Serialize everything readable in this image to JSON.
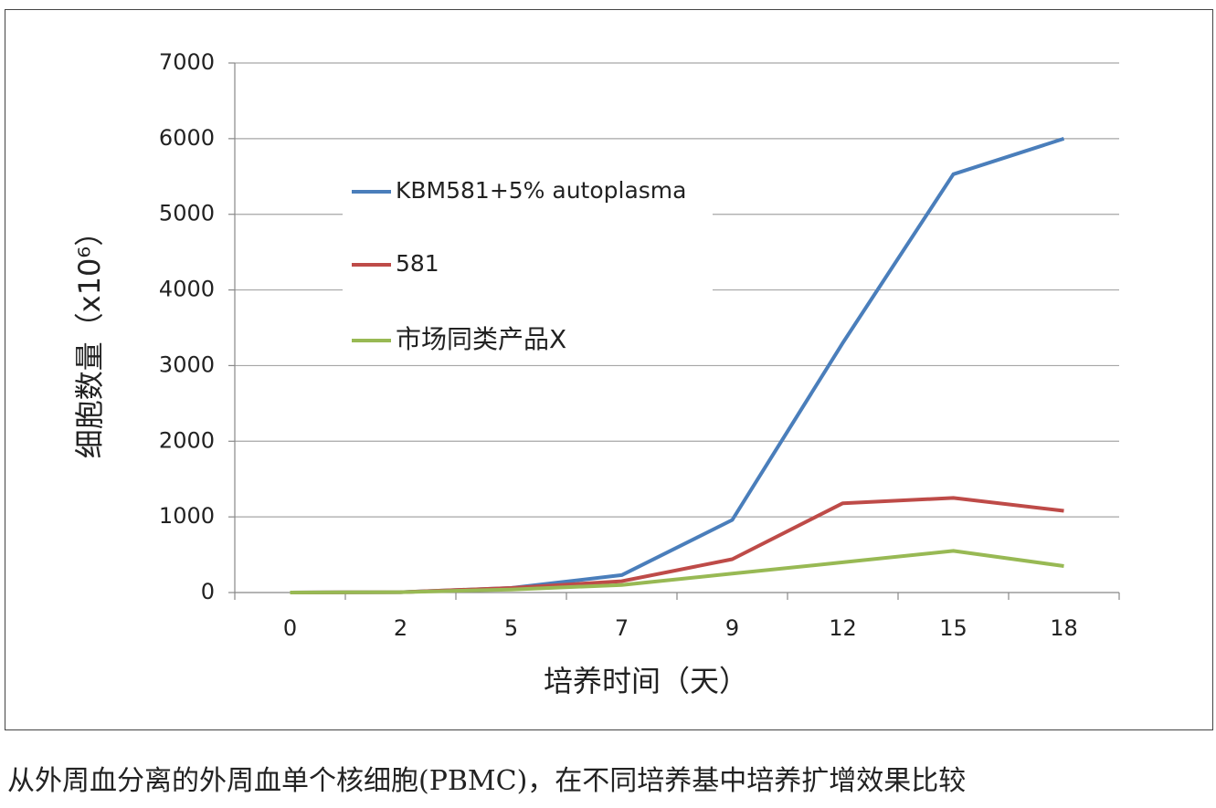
{
  "chart_data": {
    "type": "line",
    "categories": [
      "0",
      "2",
      "5",
      "7",
      "9",
      "12",
      "15",
      "18"
    ],
    "x_label": "培养时间（天）",
    "y_label": "细胞数量（x10⁶）",
    "series": [
      {
        "name": "KBM581+5% autoplasma",
        "color": "#4a7ebb",
        "values": [
          0,
          5,
          60,
          230,
          960,
          3300,
          5530,
          6000
        ]
      },
      {
        "name": "581",
        "color": "#be4b48",
        "values": [
          0,
          5,
          60,
          150,
          440,
          1180,
          1250,
          1080
        ]
      },
      {
        "name": "市场同类产品X",
        "color": "#98b954",
        "values": [
          0,
          5,
          40,
          100,
          250,
          400,
          550,
          350
        ]
      }
    ],
    "ylim": [
      0,
      7000
    ],
    "yticks": [
      0,
      1000,
      2000,
      3000,
      4000,
      5000,
      6000,
      7000
    ],
    "grid": true
  },
  "caption": "从外周血分离的外周血单个核细胞(PBMC)，在不同培养基中培养扩增效果比较"
}
